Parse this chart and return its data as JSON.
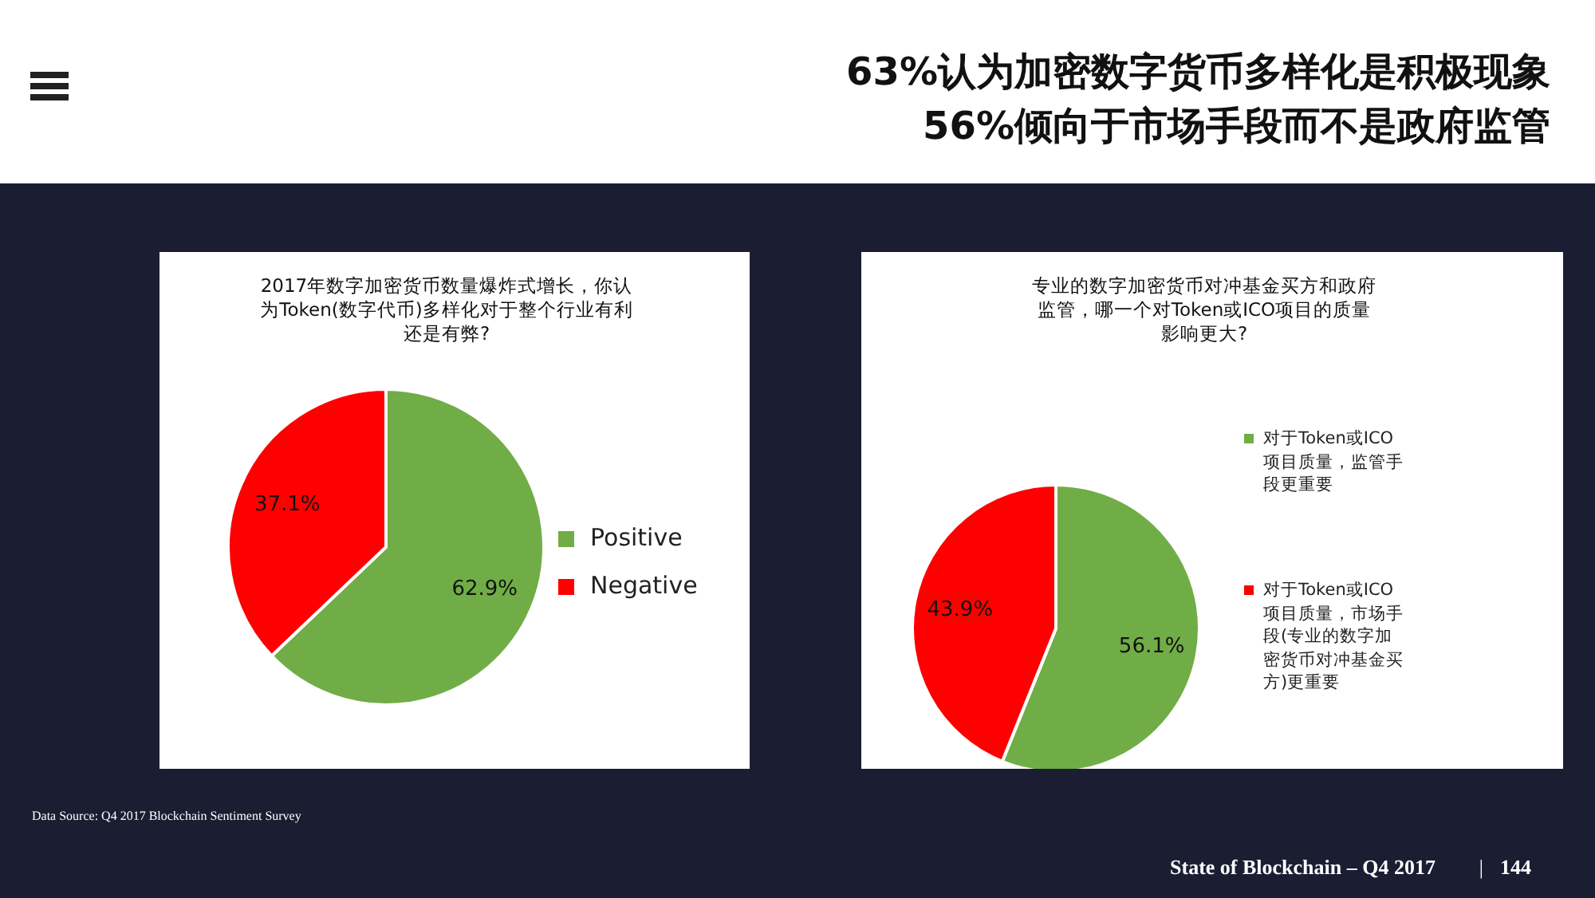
{
  "chart_data": [
    {
      "type": "other",
      "title": "63%认为加密数字货币多样化是积极现象\n56%倾向于市场手段而不是政府监管"
    },
    {
      "type": "pie",
      "title": "2017年数字加密货币数量爆炸式增长，你认为Token(数字代币)多样化对于整个行业有利还是有弊?",
      "categories": [
        "Positive",
        "Negative"
      ],
      "values": [
        62.9,
        37.1
      ],
      "colors": [
        "#70ad47",
        "#ff0000"
      ],
      "value_labels": [
        "62.9%",
        "37.1%"
      ],
      "legend": "right"
    },
    {
      "type": "pie",
      "title": "专业的数字加密货币对冲基金买方和政府监管，哪一个对Token或ICO项目的质量影响更大?",
      "categories": [
        "对于Token或ICO项目质量，监管手段更重要",
        "对于Token或ICO项目质量，市场手段(专业的数字加密货币对冲基金买方)更重要"
      ],
      "values": [
        56.1,
        43.9
      ],
      "colors": [
        "#70ad47",
        "#ff0000"
      ],
      "value_labels": [
        "56.1%",
        "43.9%"
      ],
      "legend": "right"
    },
    {
      "type": "other",
      "annotations": [
        "Data Source: Q4 2017 Blockchain Sentiment Survey",
        "State of Blockchain – Q4 2017",
        "|",
        "144"
      ]
    }
  ]
}
